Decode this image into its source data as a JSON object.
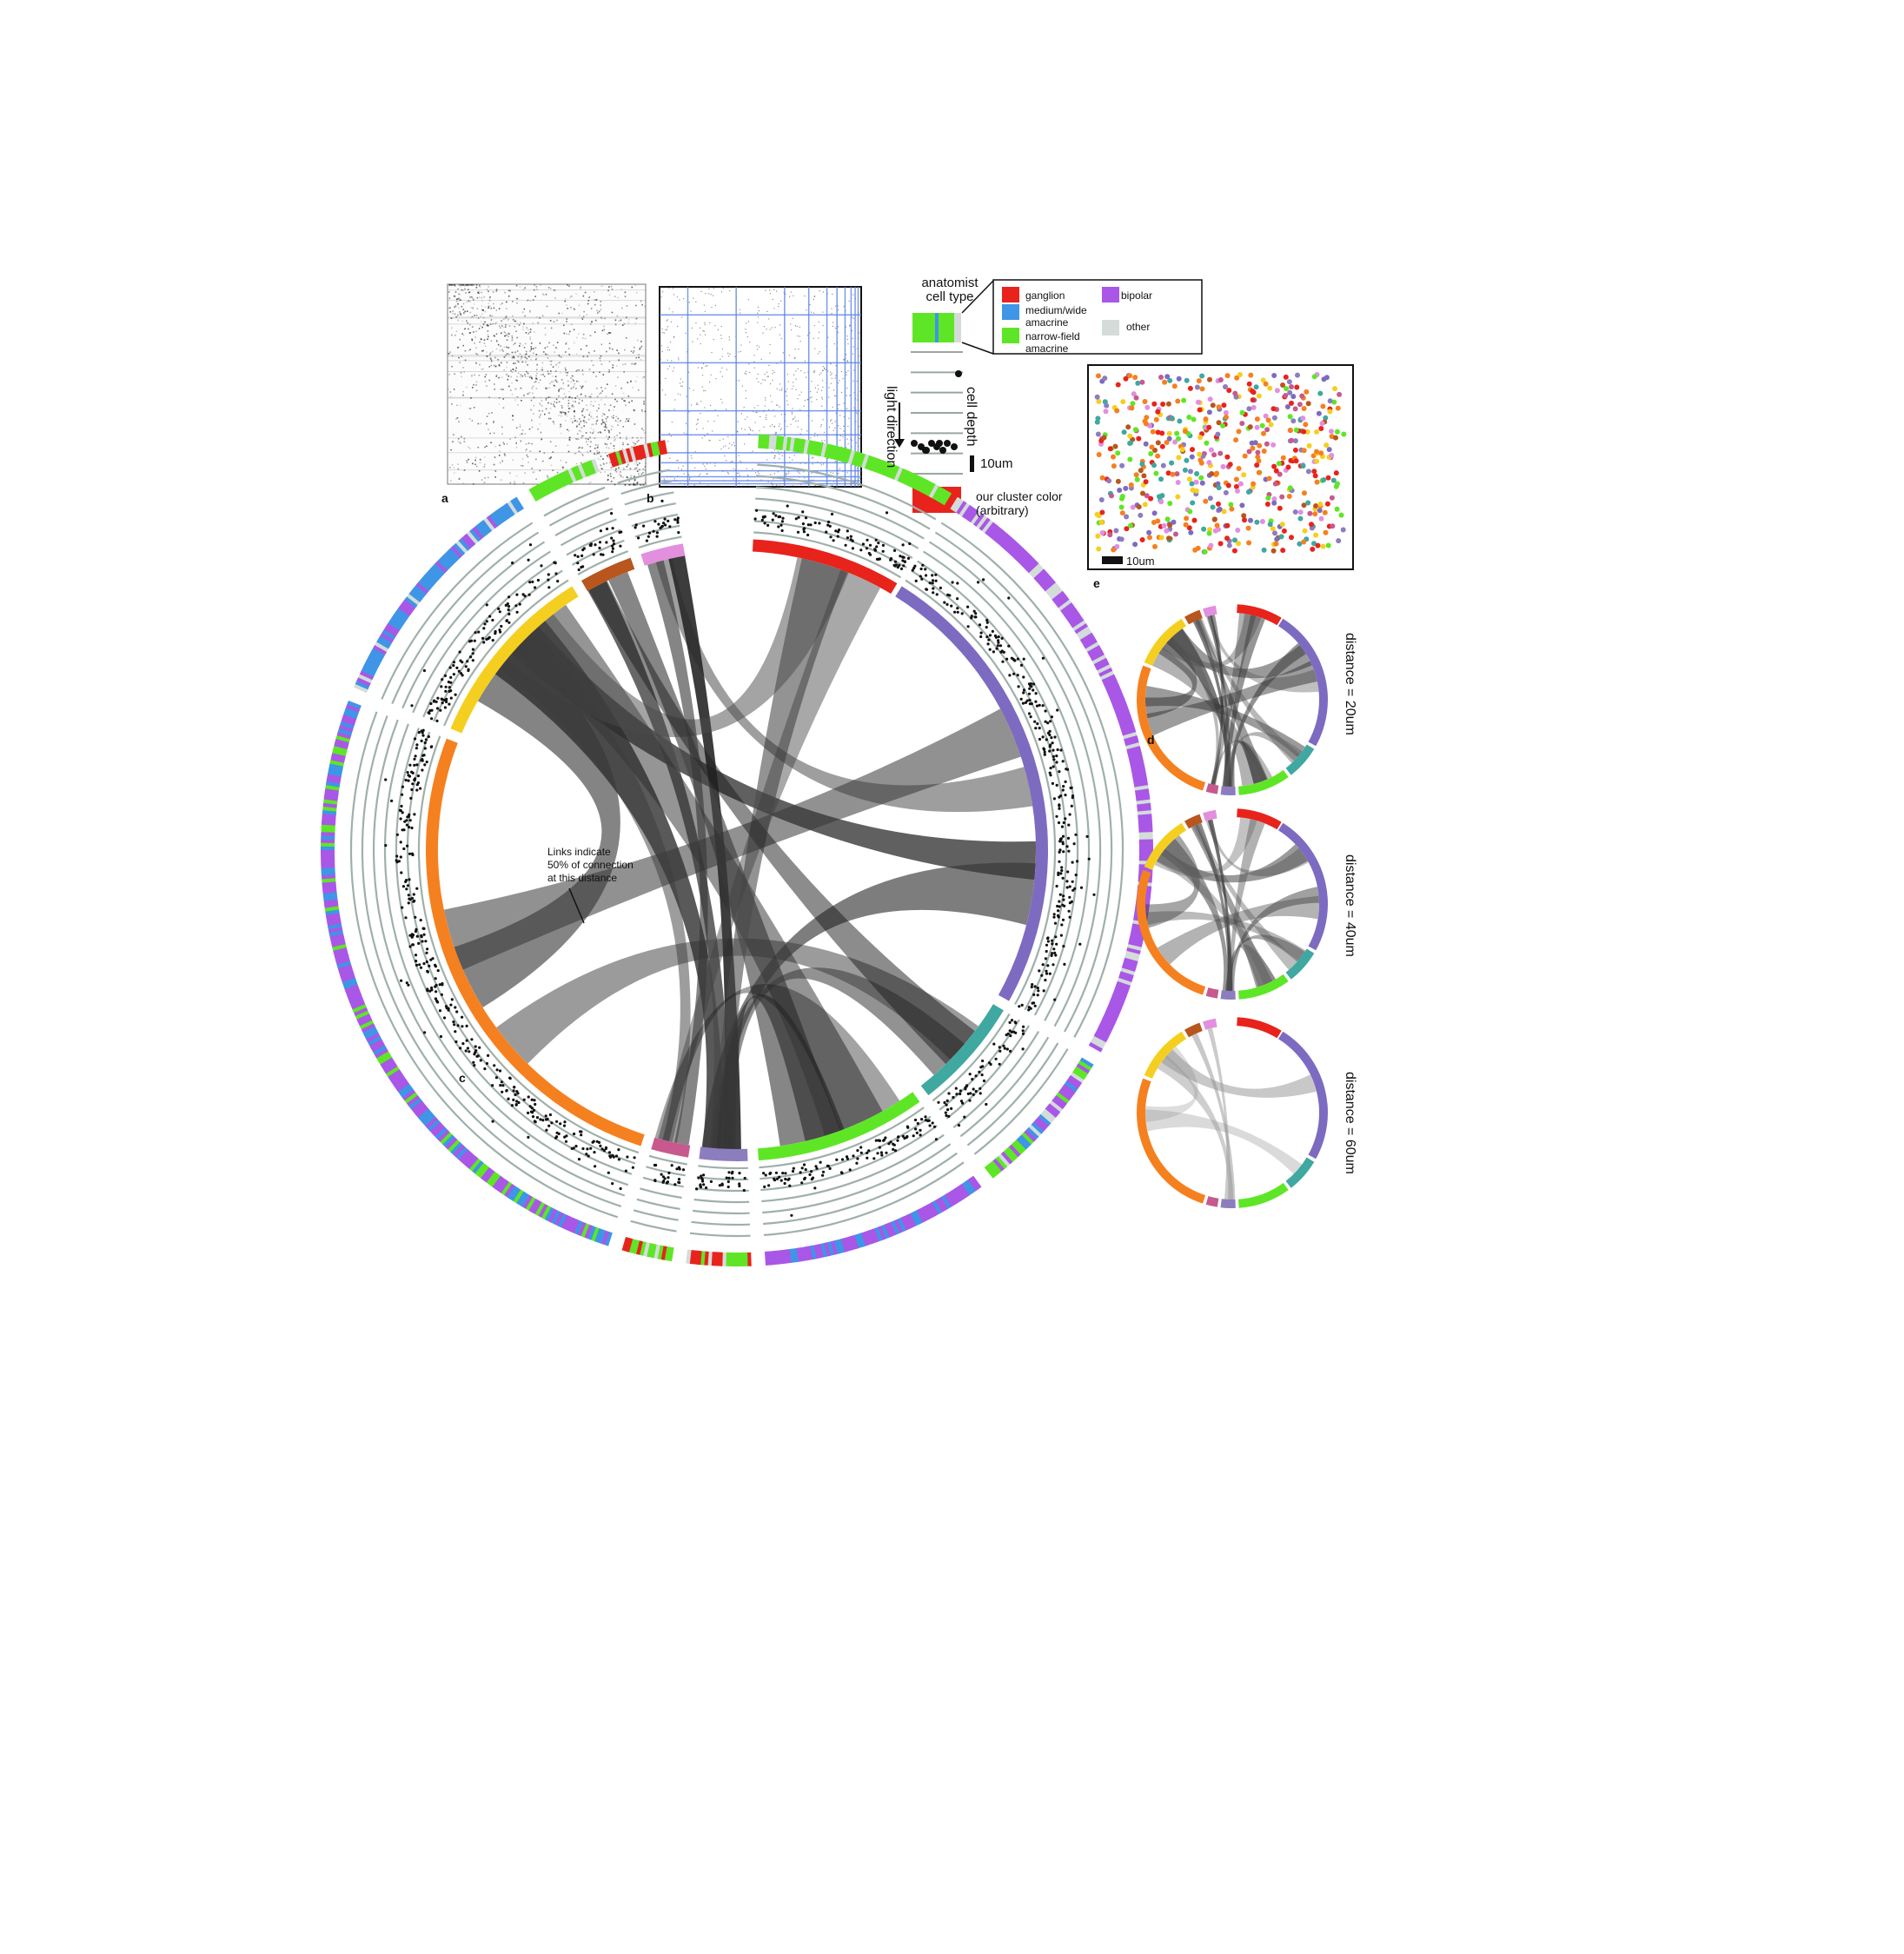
{
  "panels": {
    "a": {
      "label": "a"
    },
    "b": {
      "label": "b"
    },
    "c": {
      "label": "c"
    },
    "d": {
      "label": "d"
    },
    "e": {
      "label": "e"
    }
  },
  "legend": {
    "title_line1": "anatomist",
    "title_line2": "cell type",
    "entries": [
      {
        "line1": "ganglion",
        "line2": "",
        "color": "#e8231c"
      },
      {
        "line1": "medium/wide",
        "line2": "amacrine",
        "color": "#3f95e6"
      },
      {
        "line1": "narrow-field",
        "line2": "amacrine",
        "color": "#5ee626"
      },
      {
        "line1": "bipolar",
        "line2": "",
        "color": "#a957e6"
      },
      {
        "line1": "other",
        "line2": "",
        "color": "#d4dcd9"
      }
    ],
    "light_direction": "light direction",
    "cell_depth": "cell depth",
    "scale_label": "10um",
    "cluster_line1": "our cluster color",
    "cluster_line2": "(arbitrary)",
    "cluster_swatch": "#e8231c"
  },
  "panel_c": {
    "annotation_line1": "Links indicate",
    "annotation_line2": "50% of connection",
    "annotation_line3": "at this distance"
  },
  "panel_d": {
    "distance_labels": [
      "distance = 20um",
      "distance = 40um",
      "distance = 60um"
    ]
  },
  "panel_e": {
    "scale_label": "10um"
  },
  "clusters": [
    {
      "color": "#e8231c"
    },
    {
      "color": "#7c6bc0"
    },
    {
      "color": "#3fa8a0"
    },
    {
      "color": "#5ee626"
    },
    {
      "color": "#8c7dbf"
    },
    {
      "color": "#c7598f"
    },
    {
      "color": "#f5801f"
    },
    {
      "color": "#f5cf1f"
    },
    {
      "color": "#b8561d"
    },
    {
      "color": "#e28fe0"
    }
  ]
}
